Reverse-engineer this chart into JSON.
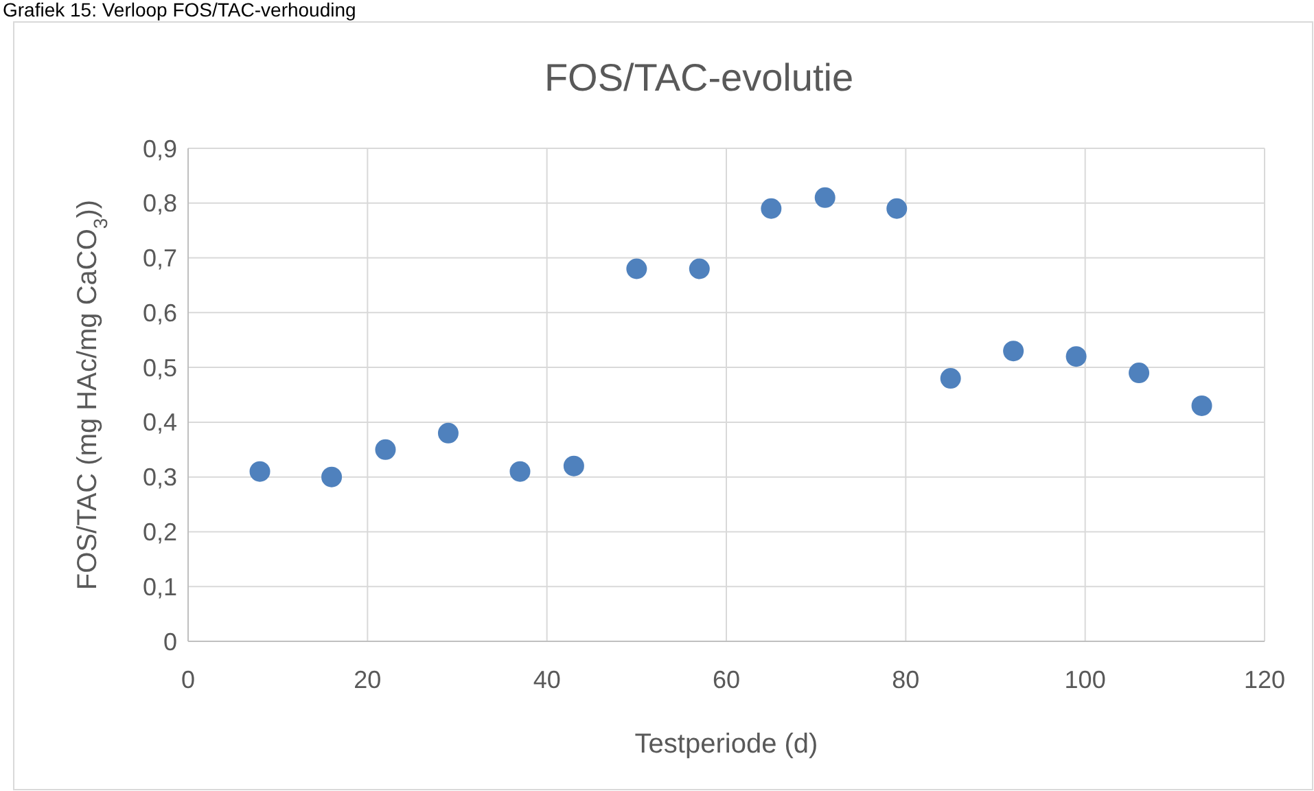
{
  "chart_data": {
    "type": "scatter",
    "title": "FOS/TAC-evolutie",
    "xlabel": "Testperiode (d)",
    "ylabel": "FOS/TAC (mg HAc/mg CaCO$_{3}$))",
    "annotations": [
      "Grafiek 15: Verloop FOS/TAC-verhouding"
    ],
    "x": [
      8,
      16,
      22,
      29,
      37,
      43,
      50,
      57,
      65,
      71,
      79,
      85,
      92,
      99,
      106,
      113
    ],
    "series": [
      {
        "color": "#4f81bd",
        "values": [
          0.31,
          0.3,
          0.35,
          0.38,
          0.31,
          0.32,
          0.68,
          0.68,
          0.79,
          0.81,
          0.79,
          0.48,
          0.53,
          0.52,
          0.49,
          0.43
        ]
      }
    ],
    "xlim": [
      0,
      120
    ],
    "xticks": [
      0,
      20,
      40,
      60,
      80,
      100,
      120
    ],
    "ylim": [
      0,
      0.9
    ],
    "yticks": [
      0,
      {
        "value": 0.1,
        "label": "0,1"
      },
      {
        "value": 0.2,
        "label": "0,2"
      },
      {
        "value": 0.3,
        "label": "0,3"
      },
      {
        "value": 0.4,
        "label": "0,4"
      },
      {
        "value": 0.5,
        "label": "0,5"
      },
      {
        "value": 0.6,
        "label": "0,6"
      },
      {
        "value": 0.7,
        "label": "0,7"
      },
      {
        "value": 0.8,
        "label": "0,8"
      },
      {
        "value": 0.9,
        "label": "0,9"
      }
    ],
    "grid": true,
    "marker": "circle"
  }
}
